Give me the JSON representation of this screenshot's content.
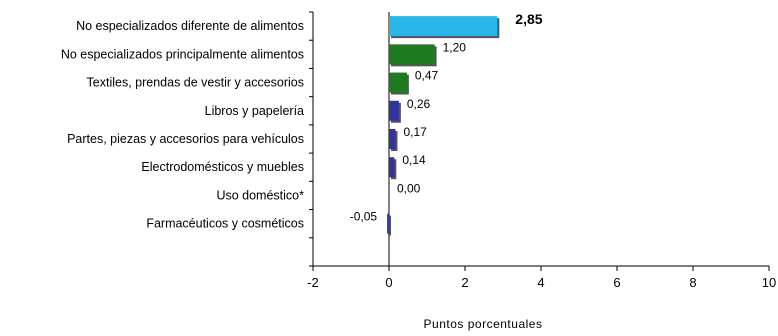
{
  "chart_data": {
    "type": "bar",
    "orientation": "horizontal",
    "title": "",
    "xlabel": "Puntos porcentuales",
    "ylabel": "",
    "xlim": [
      -2,
      10
    ],
    "xticks": [
      -2,
      0,
      2,
      4,
      6,
      8,
      10
    ],
    "grid": false,
    "legend": "none",
    "categories": [
      "No especializados diferente de alimentos",
      "No especializados principalmente alimentos",
      "Textiles, prendas de vestir y accesorios",
      "Libros y papelería",
      "Partes, piezas y accesorios para vehículos",
      "Electrodomésticos y muebles",
      "Uso doméstico*",
      "Farmacéuticos y cosméticos"
    ],
    "values": [
      2.85,
      1.2,
      0.47,
      0.26,
      0.17,
      0.14,
      0.0,
      -0.05
    ],
    "value_labels": [
      "2,85",
      "1,20",
      "0,47",
      "0,26",
      "0,17",
      "0,14",
      "0,00",
      "-0,05"
    ],
    "tick_labels": [
      "-2",
      "0",
      "2",
      "4",
      "6",
      "8",
      "10"
    ],
    "bar_colors": [
      "#29B6E8",
      "#1E7A1E",
      "#1E7A1E",
      "#33339A",
      "#33339A",
      "#33339A",
      "#33339A",
      "#33339A"
    ],
    "highlight_index": 0
  }
}
